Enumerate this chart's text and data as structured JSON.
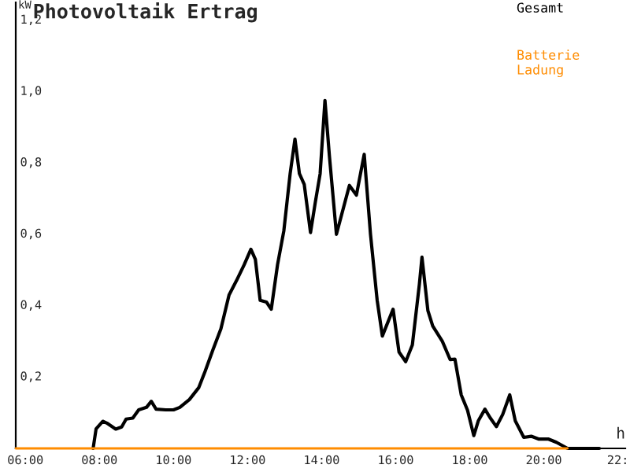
{
  "chart_data": {
    "type": "line",
    "title": "Photovoltaik Ertrag",
    "xlabel": "h",
    "ylabel": "kW",
    "xlim": [
      5.74,
      22.2
    ],
    "ylim": [
      0,
      1.25
    ],
    "xticks": [
      {
        "value": 6,
        "label": "06:00"
      },
      {
        "value": 8,
        "label": "08:00"
      },
      {
        "value": 10,
        "label": "10:00"
      },
      {
        "value": 12,
        "label": "12:00"
      },
      {
        "value": 14,
        "label": "14:00"
      },
      {
        "value": 16,
        "label": "16:00"
      },
      {
        "value": 18,
        "label": "18:00"
      },
      {
        "value": 20,
        "label": "20:00"
      },
      {
        "value": 22,
        "label": "22:"
      }
    ],
    "yticks": [
      {
        "value": 0.2,
        "label": "0,2"
      },
      {
        "value": 0.4,
        "label": "0,4"
      },
      {
        "value": 0.6,
        "label": "0,6"
      },
      {
        "value": 0.8,
        "label": "0,8"
      },
      {
        "value": 1.0,
        "label": "1,0"
      },
      {
        "value": 1.2,
        "label": "1,2"
      }
    ],
    "grid": false,
    "legend": "top right",
    "marker": "none",
    "line_style": "solid",
    "series": [
      {
        "name": "Gesamt",
        "color": "#000000",
        "x": [
          7.83,
          7.91,
          8.09,
          8.2,
          8.44,
          8.6,
          8.72,
          8.9,
          9.06,
          9.27,
          9.4,
          9.53,
          9.79,
          10.0,
          10.17,
          10.43,
          10.68,
          10.85,
          11.06,
          11.28,
          11.5,
          11.7,
          11.91,
          12.09,
          12.21,
          12.34,
          12.51,
          12.64,
          12.81,
          12.98,
          13.15,
          13.28,
          13.4,
          13.53,
          13.7,
          13.83,
          13.96,
          14.09,
          14.21,
          14.4,
          14.75,
          14.94,
          15.15,
          15.32,
          15.5,
          15.64,
          15.93,
          16.09,
          16.27,
          16.45,
          16.64,
          16.71,
          16.87,
          17.0,
          17.26,
          17.47,
          17.6,
          17.77,
          17.94,
          18.11,
          18.23,
          18.41,
          18.55,
          18.72,
          18.89,
          19.08,
          19.23,
          19.46,
          19.66,
          19.87,
          20.13,
          20.34,
          20.64,
          21.5
        ],
        "values": [
          0,
          0.055,
          0.076,
          0.071,
          0.054,
          0.06,
          0.082,
          0.085,
          0.108,
          0.115,
          0.132,
          0.11,
          0.108,
          0.108,
          0.115,
          0.137,
          0.17,
          0.215,
          0.275,
          0.335,
          0.43,
          0.47,
          0.515,
          0.558,
          0.53,
          0.415,
          0.41,
          0.39,
          0.515,
          0.61,
          0.77,
          0.867,
          0.77,
          0.74,
          0.605,
          0.69,
          0.77,
          0.975,
          0.82,
          0.6,
          0.737,
          0.71,
          0.824,
          0.6,
          0.415,
          0.315,
          0.39,
          0.27,
          0.243,
          0.29,
          0.46,
          0.536,
          0.386,
          0.343,
          0.3,
          0.249,
          0.25,
          0.15,
          0.107,
          0.036,
          0.077,
          0.11,
          0.086,
          0.061,
          0.095,
          0.15,
          0.077,
          0.031,
          0.034,
          0.026,
          0.026,
          0.017,
          0,
          0
        ]
      },
      {
        "name": "Batterie Ladung",
        "color": "#ff8c00",
        "x": [
          5.74,
          20.64
        ],
        "values": [
          0,
          0
        ]
      }
    ]
  }
}
